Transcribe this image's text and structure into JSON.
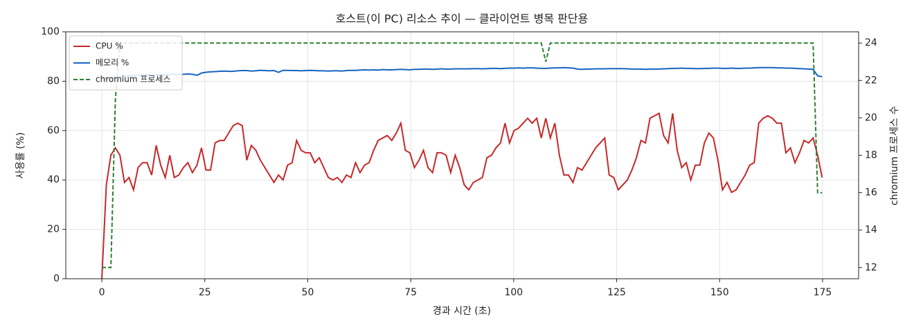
{
  "chart_data": {
    "type": "line",
    "title": "호스트(이 PC) 리소스 추이 — 클라이언트 병목 판단용",
    "xlabel": "경과 시간 (초)",
    "ylabel": "사용률 (%)",
    "y2label": "chromium 프로세스 수",
    "xlim": [
      -8.75,
      183.75
    ],
    "xticks": [
      0,
      25,
      50,
      75,
      100,
      125,
      150,
      175
    ],
    "ylim": [
      0,
      100
    ],
    "yticks": [
      0,
      20,
      40,
      60,
      80,
      100
    ],
    "y2lim": [
      11.4,
      24.6
    ],
    "y2ticks": [
      12,
      14,
      16,
      18,
      20,
      22,
      24
    ],
    "grid": true,
    "legend": "upper left",
    "x": [
      0,
      1.1,
      2.2,
      3.3,
      4.4,
      5.5,
      6.6,
      7.7,
      8.8,
      9.9,
      11,
      12.1,
      13.2,
      14.3,
      15.4,
      16.5,
      17.6,
      18.7,
      19.8,
      20.9,
      22,
      23.1,
      24.2,
      25.3,
      26.4,
      27.5,
      28.6,
      29.7,
      30.8,
      31.9,
      33,
      34.1,
      35.2,
      36.3,
      37.4,
      38.5,
      39.6,
      40.7,
      41.8,
      42.9,
      44,
      45.1,
      46.2,
      47.3,
      48.4,
      49.5,
      50.6,
      51.7,
      52.8,
      53.9,
      55,
      56.1,
      57.2,
      58.3,
      59.4,
      60.5,
      61.6,
      62.7,
      63.8,
      64.9,
      66,
      67.1,
      68.2,
      69.3,
      70.4,
      71.5,
      72.6,
      73.7,
      74.8,
      75.9,
      77,
      78.1,
      79.2,
      80.3,
      81.4,
      82.5,
      83.6,
      84.7,
      85.8,
      86.9,
      88,
      89.1,
      90.2,
      91.3,
      92.4,
      93.5,
      94.6,
      95.7,
      96.8,
      97.9,
      99,
      100.1,
      101.2,
      102.3,
      103.4,
      104.5,
      105.6,
      106.7,
      107.8,
      108.9,
      110,
      111.1,
      112.2,
      113.3,
      114.4,
      115.5,
      116.6,
      117.7,
      118.8,
      119.9,
      121,
      122.1,
      123.2,
      124.3,
      125.4,
      126.5,
      127.6,
      128.7,
      129.8,
      130.9,
      132,
      133.1,
      134.2,
      135.3,
      136.4,
      137.5,
      138.6,
      139.7,
      140.8,
      141.9,
      143,
      144.1,
      145.2,
      146.3,
      147.4,
      148.5,
      149.6,
      150.7,
      151.8,
      152.9,
      154,
      155.1,
      156.2,
      157.3,
      158.4,
      159.5,
      160.6,
      161.7,
      162.8,
      163.9,
      165,
      166.1,
      167.2,
      168.3,
      169.4,
      170.5,
      171.6,
      172.7,
      173.8,
      174.9
    ],
    "series": [
      {
        "name": "CPU %",
        "color": "#c62828",
        "dash": false,
        "axis": "y",
        "values": [
          0,
          38,
          50,
          53,
          50,
          39,
          41,
          36,
          45,
          47,
          47,
          42,
          54,
          46,
          41,
          50,
          41,
          42,
          45,
          47,
          43,
          46,
          53,
          44,
          44,
          55,
          56,
          56,
          59,
          62,
          63,
          62,
          48,
          54,
          52,
          48,
          45,
          42,
          39,
          42,
          40,
          46,
          47,
          56,
          52,
          51,
          51,
          47,
          49,
          45,
          41,
          40,
          41,
          39,
          42,
          41,
          47,
          43,
          46,
          47,
          52,
          56,
          57,
          58,
          56,
          59,
          63,
          52,
          51,
          45,
          48,
          52,
          45,
          43,
          51,
          51,
          50,
          43,
          50,
          45,
          38,
          36,
          39,
          40,
          41,
          49,
          50,
          53,
          55,
          63,
          55,
          60,
          61,
          63,
          65,
          63,
          65,
          57,
          65,
          57,
          63,
          50,
          42,
          42,
          39,
          45,
          44,
          47,
          50,
          53,
          55,
          57,
          42,
          41,
          36,
          38,
          40,
          44,
          49,
          56,
          55,
          65,
          66,
          67,
          58,
          55,
          67,
          52,
          45,
          47,
          40,
          46,
          46,
          55,
          59,
          57,
          48,
          36,
          39,
          35,
          36,
          39,
          42,
          46,
          47,
          63,
          65,
          66,
          65,
          63,
          63,
          51,
          53,
          47,
          51,
          56,
          55,
          57,
          50,
          41
        ]
      },
      {
        "name": "메모리 %",
        "color": "#1565c0",
        "dash": false,
        "axis": "y",
        "values": [
          81,
          81,
          81.2,
          81.5,
          81.8,
          82,
          82.2,
          82.4,
          82.5,
          82.5,
          82.6,
          82.5,
          82.5,
          82.6,
          82.6,
          82.7,
          82.8,
          82.7,
          82.8,
          82.9,
          82.8,
          82.4,
          83.3,
          83.6,
          83.8,
          83.9,
          84,
          84.1,
          84,
          84,
          84.2,
          84.3,
          84.3,
          84.1,
          84.2,
          84.4,
          84.3,
          84.2,
          84.3,
          83.6,
          84.4,
          84.4,
          84.3,
          84.3,
          84.2,
          84.3,
          84.4,
          84.3,
          84.2,
          84.2,
          84.1,
          84.2,
          84.2,
          84.1,
          84.3,
          84.4,
          84.4,
          84.5,
          84.6,
          84.5,
          84.6,
          84.5,
          84.7,
          84.6,
          84.6,
          84.7,
          84.8,
          84.7,
          84.6,
          84.8,
          84.8,
          84.9,
          84.9,
          84.8,
          84.9,
          85,
          84.9,
          84.9,
          85,
          85,
          85,
          85,
          85.1,
          85.1,
          85,
          85.1,
          85.2,
          85.2,
          85.1,
          85.2,
          85.3,
          85.3,
          85.4,
          85.3,
          85.4,
          85.4,
          85.3,
          85.2,
          85.2,
          85.3,
          85.4,
          85.4,
          85.5,
          85.4,
          85.3,
          84.9,
          84.8,
          84.9,
          84.9,
          85,
          85,
          85,
          85.1,
          85.1,
          85.1,
          85.1,
          85,
          84.9,
          84.9,
          84.9,
          84.8,
          84.9,
          84.9,
          84.9,
          85,
          85.1,
          85.2,
          85.2,
          85.3,
          85.2,
          85.2,
          85.1,
          85.1,
          85.2,
          85.2,
          85.3,
          85.3,
          85.2,
          85.2,
          85.3,
          85.2,
          85.2,
          85.3,
          85.3,
          85.4,
          85.5,
          85.5,
          85.5,
          85.5,
          85.4,
          85.4,
          85.3,
          85.3,
          85.2,
          85.1,
          85,
          84.9,
          84.8,
          82.2,
          81.8
        ]
      },
      {
        "name": "chromium 프로세스",
        "color": "#2e7d32",
        "dash": true,
        "axis": "y2",
        "values": [
          12,
          12,
          12,
          21,
          24,
          24,
          24,
          24,
          24,
          24,
          24,
          24,
          24,
          24,
          24,
          24,
          24,
          24,
          24,
          24,
          24,
          24,
          24,
          24,
          24,
          24,
          24,
          24,
          24,
          24,
          24,
          24,
          24,
          24,
          24,
          24,
          24,
          24,
          24,
          24,
          24,
          24,
          24,
          24,
          24,
          24,
          24,
          24,
          24,
          24,
          24,
          24,
          24,
          24,
          24,
          24,
          24,
          24,
          24,
          24,
          24,
          24,
          24,
          24,
          24,
          24,
          24,
          24,
          24,
          24,
          24,
          24,
          24,
          24,
          24,
          24,
          24,
          24,
          24,
          24,
          24,
          24,
          24,
          24,
          24,
          24,
          24,
          24,
          24,
          24,
          24,
          24,
          24,
          24,
          24,
          24,
          24,
          24,
          23,
          24,
          24,
          24,
          24,
          24,
          24,
          24,
          24,
          24,
          24,
          24,
          24,
          24,
          24,
          24,
          24,
          24,
          24,
          24,
          24,
          24,
          24,
          24,
          24,
          24,
          24,
          24,
          24,
          24,
          24,
          24,
          24,
          24,
          24,
          24,
          24,
          24,
          24,
          24,
          24,
          24,
          24,
          24,
          24,
          24,
          24,
          24,
          24,
          24,
          24,
          24,
          24,
          24,
          24,
          24,
          24,
          24,
          24,
          24,
          16,
          16
        ]
      }
    ]
  }
}
